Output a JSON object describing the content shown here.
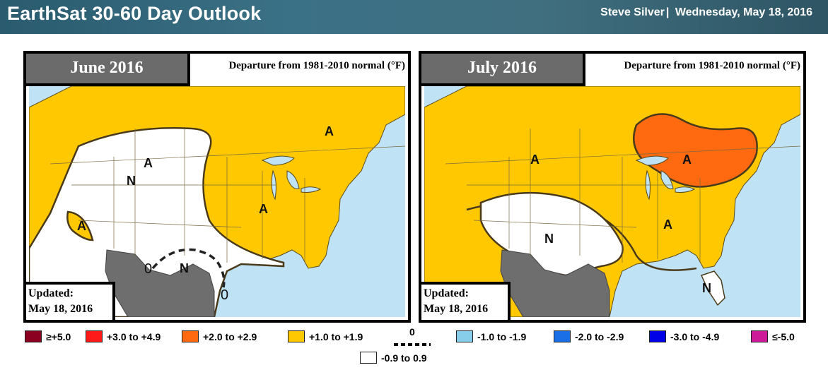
{
  "header": {
    "title": "EarthSat 30-60 Day Outlook",
    "author": "Steve Silver",
    "separator": "|",
    "date": "Wednesday, May 18, 2016"
  },
  "panels": [
    {
      "month": "June 2016",
      "departure_label": "Departure from 1981-2010 normal (°F)",
      "updated_line1": "Updated:",
      "updated_line2": "May 18, 2016",
      "region_labels": [
        "A",
        "A",
        "N",
        "A",
        "A",
        "N",
        "0",
        "0"
      ]
    },
    {
      "month": "July 2016",
      "departure_label": "Departure from 1981-2010 normal (°F)",
      "updated_line1": "Updated:",
      "updated_line2": "May 18, 2016",
      "region_labels": [
        "A",
        "A",
        "N",
        "A",
        "N"
      ]
    }
  ],
  "legend": {
    "items": [
      {
        "label": "≥+5.0",
        "color": "#8b0020"
      },
      {
        "label": "+3.0 to +4.9",
        "color": "#ff1a1a"
      },
      {
        "label": "+2.0 to +2.9",
        "color": "#ff6a10"
      },
      {
        "label": "+1.0 to +1.9",
        "color": "#ffc800"
      },
      {
        "label": "-1.0 to -1.9",
        "color": "#87ceeb"
      },
      {
        "label": "-2.0 to -2.9",
        "color": "#1a6ee6"
      },
      {
        "label": "-3.0 to -4.9",
        "color": "#0000e6"
      },
      {
        "label": "≤-5.0",
        "color": "#cc1a99"
      }
    ],
    "neutral": {
      "label": "-0.9 to 0.9",
      "color": "#ffffff"
    },
    "zero_line_label": "0"
  },
  "colors": {
    "ocean": "#bfe3f5",
    "above": "#ffc800",
    "much_above": "#ff6a10",
    "normal": "#ffffff",
    "mexico": "#6e6e6e"
  }
}
